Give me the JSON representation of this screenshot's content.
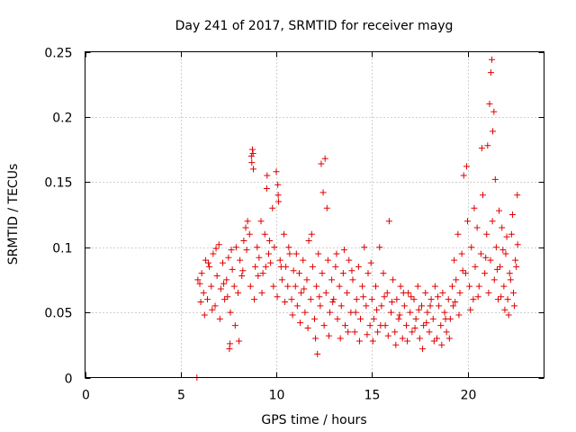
{
  "chart_data": {
    "type": "scatter",
    "title": "Day 241 of 2017, SRMTID for receiver mayg",
    "xlabel": "GPS time / hours",
    "ylabel": "SRMTID / TECUs",
    "xlim": [
      0,
      24
    ],
    "ylim": [
      0,
      0.25
    ],
    "xticks": [
      0,
      5,
      10,
      15,
      20
    ],
    "xtick_labels": [
      "0",
      "5",
      "10",
      "15",
      "20"
    ],
    "yticks": [
      0,
      0.05,
      0.1,
      0.15,
      0.2,
      0.25
    ],
    "ytick_labels": [
      "0",
      "0.05",
      "0.1",
      "0.15",
      "0.2",
      "0.25"
    ],
    "grid": true,
    "marker": "plus",
    "marker_color": "#e00000",
    "series": [
      {
        "name": "SRMTID",
        "points": [
          [
            5.85,
            0.0
          ],
          [
            5.9,
            0.075
          ],
          [
            6.0,
            0.072
          ],
          [
            6.1,
            0.08
          ],
          [
            6.2,
            0.065
          ],
          [
            6.3,
            0.09
          ],
          [
            6.4,
            0.06
          ],
          [
            6.5,
            0.085
          ],
          [
            6.6,
            0.07
          ],
          [
            6.7,
            0.095
          ],
          [
            6.8,
            0.055
          ],
          [
            6.9,
            0.078
          ],
          [
            7.0,
            0.102
          ],
          [
            7.1,
            0.068
          ],
          [
            7.2,
            0.088
          ],
          [
            7.3,
            0.06
          ],
          [
            7.4,
            0.075
          ],
          [
            7.5,
            0.092
          ],
          [
            7.6,
            0.05
          ],
          [
            7.7,
            0.083
          ],
          [
            7.8,
            0.07
          ],
          [
            7.9,
            0.1
          ],
          [
            8.0,
            0.065
          ],
          [
            8.1,
            0.09
          ],
          [
            8.2,
            0.078
          ],
          [
            8.3,
            0.105
          ],
          [
            8.4,
            0.115
          ],
          [
            8.5,
            0.12
          ],
          [
            8.6,
            0.11
          ],
          [
            8.7,
            0.17
          ],
          [
            8.75,
            0.175
          ],
          [
            8.8,
            0.16
          ],
          [
            8.9,
            0.085
          ],
          [
            9.0,
            0.1
          ],
          [
            9.1,
            0.092
          ],
          [
            9.2,
            0.12
          ],
          [
            9.3,
            0.08
          ],
          [
            9.4,
            0.11
          ],
          [
            9.5,
            0.145
          ],
          [
            9.6,
            0.095
          ],
          [
            9.7,
            0.088
          ],
          [
            9.8,
            0.13
          ],
          [
            9.9,
            0.1
          ],
          [
            10.0,
            0.158
          ],
          [
            10.1,
            0.14
          ],
          [
            10.2,
            0.09
          ],
          [
            10.3,
            0.075
          ],
          [
            10.4,
            0.11
          ],
          [
            10.5,
            0.085
          ],
          [
            10.6,
            0.07
          ],
          [
            10.7,
            0.095
          ],
          [
            10.8,
            0.06
          ],
          [
            10.9,
            0.082
          ],
          [
            6.05,
            0.058
          ],
          [
            6.25,
            0.048
          ],
          [
            6.45,
            0.088
          ],
          [
            6.65,
            0.052
          ],
          [
            6.85,
            0.099
          ],
          [
            7.05,
            0.045
          ],
          [
            7.25,
            0.072
          ],
          [
            7.45,
            0.062
          ],
          [
            7.65,
            0.098
          ],
          [
            7.85,
            0.04
          ],
          [
            8.05,
            0.028
          ],
          [
            8.25,
            0.082
          ],
          [
            8.45,
            0.098
          ],
          [
            8.65,
            0.07
          ],
          [
            8.85,
            0.06
          ],
          [
            9.05,
            0.078
          ],
          [
            9.25,
            0.065
          ],
          [
            9.45,
            0.085
          ],
          [
            9.65,
            0.105
          ],
          [
            9.85,
            0.07
          ],
          [
            10.05,
            0.062
          ],
          [
            10.25,
            0.085
          ],
          [
            10.45,
            0.058
          ],
          [
            10.65,
            0.1
          ],
          [
            10.85,
            0.048
          ],
          [
            7.55,
            0.022
          ],
          [
            7.58,
            0.026
          ],
          [
            8.72,
            0.165
          ],
          [
            8.78,
            0.172
          ],
          [
            9.52,
            0.155
          ],
          [
            10.08,
            0.148
          ],
          [
            10.12,
            0.135
          ],
          [
            11.0,
            0.07
          ],
          [
            11.1,
            0.055
          ],
          [
            11.2,
            0.08
          ],
          [
            11.3,
            0.065
          ],
          [
            11.4,
            0.09
          ],
          [
            11.5,
            0.05
          ],
          [
            11.6,
            0.075
          ],
          [
            11.7,
            0.105
          ],
          [
            11.8,
            0.06
          ],
          [
            11.9,
            0.085
          ],
          [
            12.0,
            0.045
          ],
          [
            12.1,
            0.07
          ],
          [
            12.2,
            0.095
          ],
          [
            12.3,
            0.055
          ],
          [
            12.4,
            0.08
          ],
          [
            12.5,
            0.04
          ],
          [
            12.6,
            0.065
          ],
          [
            12.7,
            0.09
          ],
          [
            12.8,
            0.05
          ],
          [
            12.9,
            0.075
          ],
          [
            13.0,
            0.06
          ],
          [
            13.1,
            0.085
          ],
          [
            13.2,
            0.045
          ],
          [
            13.3,
            0.07
          ],
          [
            13.4,
            0.055
          ],
          [
            13.5,
            0.08
          ],
          [
            13.6,
            0.04
          ],
          [
            13.7,
            0.065
          ],
          [
            13.8,
            0.09
          ],
          [
            13.9,
            0.05
          ],
          [
            14.0,
            0.075
          ],
          [
            14.1,
            0.035
          ],
          [
            14.2,
            0.06
          ],
          [
            14.3,
            0.085
          ],
          [
            14.4,
            0.045
          ],
          [
            14.5,
            0.07
          ],
          [
            14.6,
            0.1
          ],
          [
            14.7,
            0.055
          ],
          [
            14.8,
            0.08
          ],
          [
            14.9,
            0.04
          ],
          [
            11.05,
            0.095
          ],
          [
            11.25,
            0.042
          ],
          [
            11.45,
            0.068
          ],
          [
            11.65,
            0.038
          ],
          [
            11.85,
            0.11
          ],
          [
            12.05,
            0.03
          ],
          [
            12.15,
            0.018
          ],
          [
            12.25,
            0.062
          ],
          [
            12.35,
            0.164
          ],
          [
            12.55,
            0.168
          ],
          [
            12.45,
            0.142
          ],
          [
            12.65,
            0.13
          ],
          [
            12.75,
            0.032
          ],
          [
            12.95,
            0.058
          ],
          [
            13.15,
            0.095
          ],
          [
            13.35,
            0.03
          ],
          [
            13.55,
            0.098
          ],
          [
            13.75,
            0.035
          ],
          [
            13.95,
            0.082
          ],
          [
            14.15,
            0.05
          ],
          [
            14.35,
            0.028
          ],
          [
            14.55,
            0.062
          ],
          [
            14.75,
            0.033
          ],
          [
            14.95,
            0.088
          ],
          [
            15.0,
            0.06
          ],
          [
            15.1,
            0.045
          ],
          [
            15.2,
            0.07
          ],
          [
            15.3,
            0.035
          ],
          [
            15.4,
            0.1
          ],
          [
            15.5,
            0.055
          ],
          [
            15.6,
            0.08
          ],
          [
            15.7,
            0.04
          ],
          [
            15.8,
            0.065
          ],
          [
            15.9,
            0.12
          ],
          [
            16.0,
            0.05
          ],
          [
            16.1,
            0.075
          ],
          [
            16.2,
            0.035
          ],
          [
            16.3,
            0.06
          ],
          [
            16.4,
            0.045
          ],
          [
            16.5,
            0.07
          ],
          [
            16.6,
            0.03
          ],
          [
            16.7,
            0.055
          ],
          [
            16.8,
            0.04
          ],
          [
            16.9,
            0.065
          ],
          [
            17.0,
            0.05
          ],
          [
            17.1,
            0.035
          ],
          [
            17.2,
            0.06
          ],
          [
            17.3,
            0.045
          ],
          [
            17.4,
            0.07
          ],
          [
            17.5,
            0.03
          ],
          [
            17.6,
            0.055
          ],
          [
            17.7,
            0.04
          ],
          [
            17.8,
            0.065
          ],
          [
            17.9,
            0.05
          ],
          [
            18.0,
            0.035
          ],
          [
            18.1,
            0.06
          ],
          [
            18.2,
            0.045
          ],
          [
            18.3,
            0.07
          ],
          [
            18.4,
            0.03
          ],
          [
            18.5,
            0.055
          ],
          [
            18.6,
            0.04
          ],
          [
            18.7,
            0.065
          ],
          [
            18.8,
            0.05
          ],
          [
            18.9,
            0.035
          ],
          [
            19.0,
            0.06
          ],
          [
            19.1,
            0.045
          ],
          [
            19.2,
            0.07
          ],
          [
            15.05,
            0.028
          ],
          [
            15.25,
            0.052
          ],
          [
            15.45,
            0.04
          ],
          [
            15.65,
            0.062
          ],
          [
            15.85,
            0.032
          ],
          [
            16.05,
            0.058
          ],
          [
            16.25,
            0.025
          ],
          [
            16.45,
            0.048
          ],
          [
            16.65,
            0.065
          ],
          [
            16.85,
            0.028
          ],
          [
            17.05,
            0.062
          ],
          [
            17.25,
            0.038
          ],
          [
            17.45,
            0.052
          ],
          [
            17.65,
            0.022
          ],
          [
            17.85,
            0.042
          ],
          [
            18.05,
            0.055
          ],
          [
            18.25,
            0.028
          ],
          [
            18.45,
            0.062
          ],
          [
            18.65,
            0.025
          ],
          [
            18.85,
            0.045
          ],
          [
            19.05,
            0.03
          ],
          [
            19.25,
            0.055
          ],
          [
            19.3,
            0.09
          ],
          [
            19.4,
            0.075
          ],
          [
            19.5,
            0.11
          ],
          [
            19.6,
            0.065
          ],
          [
            19.7,
            0.095
          ],
          [
            19.8,
            0.155
          ],
          [
            19.9,
            0.08
          ],
          [
            20.0,
            0.12
          ],
          [
            20.1,
            0.07
          ],
          [
            20.2,
            0.1
          ],
          [
            20.3,
            0.06
          ],
          [
            20.4,
            0.085
          ],
          [
            20.5,
            0.115
          ],
          [
            20.6,
            0.07
          ],
          [
            20.7,
            0.095
          ],
          [
            20.8,
            0.14
          ],
          [
            20.9,
            0.08
          ],
          [
            21.0,
            0.11
          ],
          [
            21.1,
            0.065
          ],
          [
            21.2,
            0.09
          ],
          [
            21.3,
            0.12
          ],
          [
            21.4,
            0.075
          ],
          [
            21.5,
            0.1
          ],
          [
            21.6,
            0.06
          ],
          [
            21.7,
            0.085
          ],
          [
            21.8,
            0.115
          ],
          [
            21.9,
            0.07
          ],
          [
            22.0,
            0.095
          ],
          [
            22.1,
            0.06
          ],
          [
            22.2,
            0.08
          ],
          [
            22.3,
            0.11
          ],
          [
            22.4,
            0.065
          ],
          [
            22.5,
            0.09
          ],
          [
            22.6,
            0.14
          ],
          [
            19.35,
            0.058
          ],
          [
            19.55,
            0.048
          ],
          [
            19.75,
            0.082
          ],
          [
            19.95,
            0.162
          ],
          [
            20.15,
            0.052
          ],
          [
            20.35,
            0.13
          ],
          [
            20.55,
            0.062
          ],
          [
            20.75,
            0.176
          ],
          [
            20.95,
            0.092
          ],
          [
            21.05,
            0.178
          ],
          [
            21.15,
            0.21
          ],
          [
            21.22,
            0.234
          ],
          [
            21.27,
            0.244
          ],
          [
            21.32,
            0.189
          ],
          [
            21.38,
            0.204
          ],
          [
            21.45,
            0.152
          ],
          [
            21.55,
            0.083
          ],
          [
            21.65,
            0.128
          ],
          [
            21.75,
            0.062
          ],
          [
            21.85,
            0.098
          ],
          [
            21.95,
            0.052
          ],
          [
            22.05,
            0.108
          ],
          [
            22.15,
            0.048
          ],
          [
            22.25,
            0.075
          ],
          [
            22.35,
            0.125
          ],
          [
            22.45,
            0.055
          ],
          [
            22.55,
            0.085
          ],
          [
            22.62,
            0.102
          ]
        ]
      }
    ]
  }
}
